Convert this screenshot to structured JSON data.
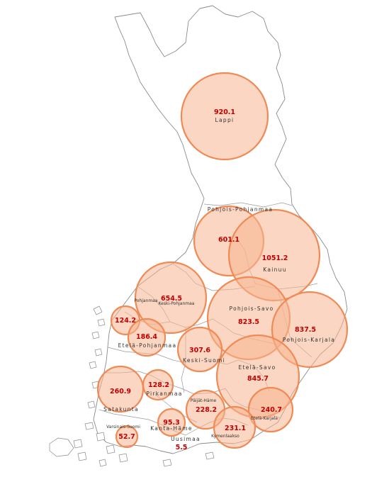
{
  "colors": {
    "bubble_fill": "#f7b48f",
    "bubble_stroke": "#f08a55",
    "value_text": "#c00000",
    "outline": "#8a8a8a"
  },
  "regions": [
    {
      "id": "lappi",
      "name": "Lappi",
      "value": "920.1",
      "small": false
    },
    {
      "id": "pohjois-pohjanmaa",
      "name": "Pohjois-Pohjanmaa",
      "value": "601.1",
      "small": false
    },
    {
      "id": "kainuu",
      "name": "Kainuu",
      "value": "1051.2",
      "small": false
    },
    {
      "id": "pohjanmaa",
      "name": "Pohjanmaa",
      "value": "654.5",
      "small": true
    },
    {
      "id": "keski-pohjanmaa",
      "name": "Keski-Pohjanmaa",
      "value": "",
      "small": true
    },
    {
      "id": "pohjois-savo",
      "name": "Pohjois-Savo",
      "value": "823.5",
      "small": false
    },
    {
      "id": "pohjois-karjala",
      "name": "Pohjois-Karjala",
      "value": "837.5",
      "small": false
    },
    {
      "id": "etela-pohjanmaa-a",
      "name": "",
      "value": "124.2",
      "small": false
    },
    {
      "id": "etela-pohjanmaa",
      "name": "Etelä-Pohjanmaa",
      "value": "186.4",
      "small": false
    },
    {
      "id": "keski-suomi",
      "name": "Keski-Suomi",
      "value": "307.6",
      "small": false
    },
    {
      "id": "etela-savo",
      "name": "Etelä-Savo",
      "value": "845.7",
      "small": false
    },
    {
      "id": "satakunta",
      "name": "Satakunta",
      "value": "260.9",
      "small": false
    },
    {
      "id": "pirkanmaa",
      "name": "Pirkanmaa",
      "value": "128.2",
      "small": false
    },
    {
      "id": "paijat-hame",
      "name": "Päijät-Häme",
      "value": "228.2",
      "small": true
    },
    {
      "id": "etela-karjala",
      "name": "Etelä-Karjala",
      "value": "240.7",
      "small": true
    },
    {
      "id": "varsinais-suomi",
      "name": "Varsinais-Suomi",
      "value": "52.7",
      "small": true
    },
    {
      "id": "kanta-hame",
      "name": "Kanta-Häme",
      "value": "95.3",
      "small": false
    },
    {
      "id": "kymenlaakso",
      "name": "Kymenlaakso",
      "value": "231.1",
      "small": true
    },
    {
      "id": "uusimaa",
      "name": "Uusimaa",
      "value": "5.5",
      "small": false
    }
  ]
}
